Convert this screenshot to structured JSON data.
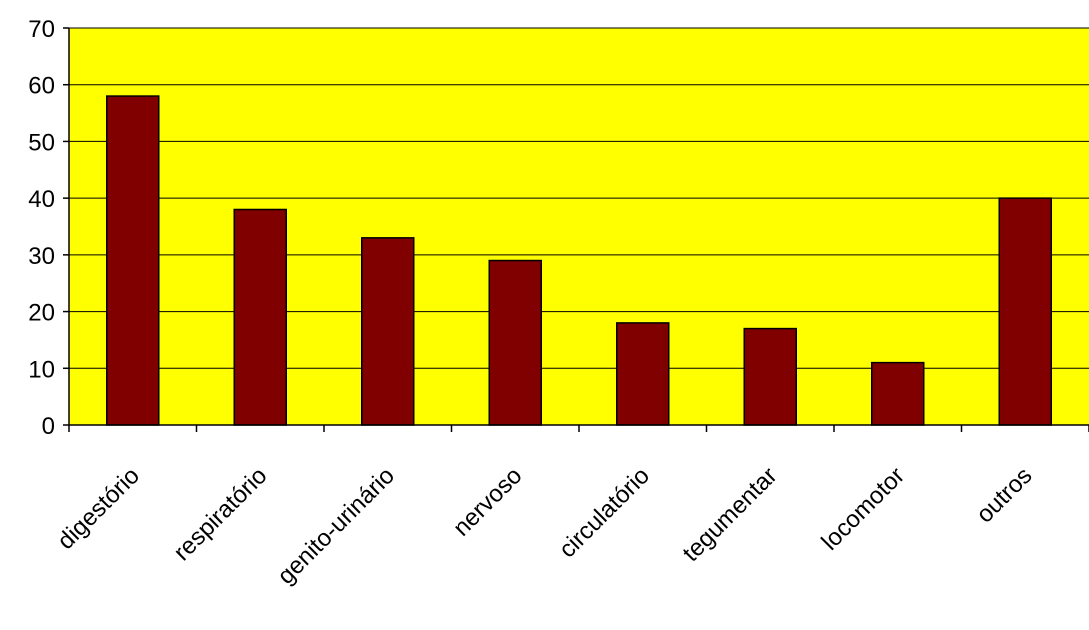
{
  "colors": {
    "plot_background": "#ffff00",
    "bar_fill": "#800000",
    "bar_stroke": "#000000",
    "gridline": "#000000",
    "page_background": "#ffffff"
  },
  "chart_data": {
    "type": "bar",
    "title": "",
    "xlabel": "",
    "ylabel": "",
    "categories": [
      "digestório",
      "respiratório",
      "genito-urinário",
      "nervoso",
      "circulatório",
      "tegumentar",
      "locomotor",
      "outros"
    ],
    "values": [
      58,
      38,
      33,
      29,
      18,
      17,
      11,
      40
    ],
    "ylim": [
      0,
      70
    ],
    "yticks": [
      "0",
      "10",
      "20",
      "30",
      "40",
      "50",
      "60",
      "70"
    ],
    "grid": true,
    "legend": "none"
  }
}
